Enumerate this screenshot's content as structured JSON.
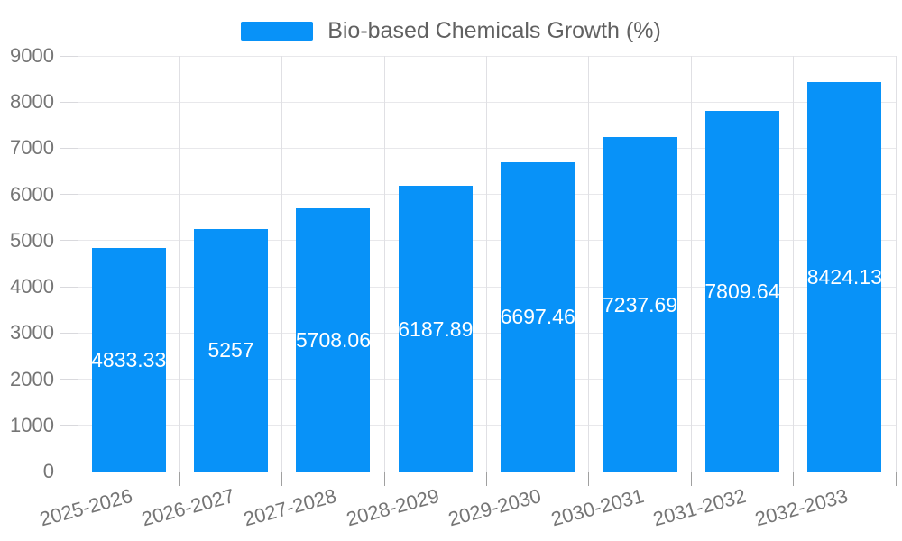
{
  "legend": {
    "label": "Bio-based Chemicals Growth (%)",
    "swatch_color": "#0892f8"
  },
  "chart_data": {
    "type": "bar",
    "title": "Bio-based Chemicals Growth (%)",
    "categories": [
      "2025-2026",
      "2026-2027",
      "2027-2028",
      "2028-2029",
      "2029-2030",
      "2030-2031",
      "2031-2032",
      "2032-2033"
    ],
    "series": [
      {
        "name": "Bio-based Chemicals Growth (%)",
        "values": [
          4833.33,
          5257,
          5708.06,
          6187.89,
          6697.46,
          7237.69,
          7809.64,
          8424.13
        ],
        "value_labels": [
          "4833.33",
          "5257",
          "5708.06",
          "6187.89",
          "6697.46",
          "7237.69",
          "7809.64",
          "8424.13"
        ],
        "color": "#0892f8"
      }
    ],
    "xlabel": "",
    "ylabel": "",
    "ylim": [
      0,
      9000
    ],
    "yticks": [
      0,
      1000,
      2000,
      3000,
      4000,
      5000,
      6000,
      7000,
      8000,
      9000
    ],
    "ytick_labels": [
      "0",
      "1000",
      "2000",
      "3000",
      "4000",
      "5000",
      "6000",
      "7000",
      "8000",
      "9000"
    ],
    "grid": true,
    "vertical_gridlines_at_category_boundaries": true,
    "legend_position": "top-center",
    "value_label_position": "center-inside-bar",
    "value_label_color": "#ffffff",
    "xtick_label_rotation_deg": -15
  },
  "colors": {
    "background": "#ffffff",
    "bar": "#0892f8",
    "grid_horizontal": "#e8e8eb",
    "grid_vertical": "#e0e0e4",
    "axis_line": "#9e9e9e",
    "tick": "#a0a0a0",
    "tick_light": "#d9d9dd",
    "axis_text": "#757575",
    "legend_text": "#616161",
    "value_text": "#ffffff"
  }
}
